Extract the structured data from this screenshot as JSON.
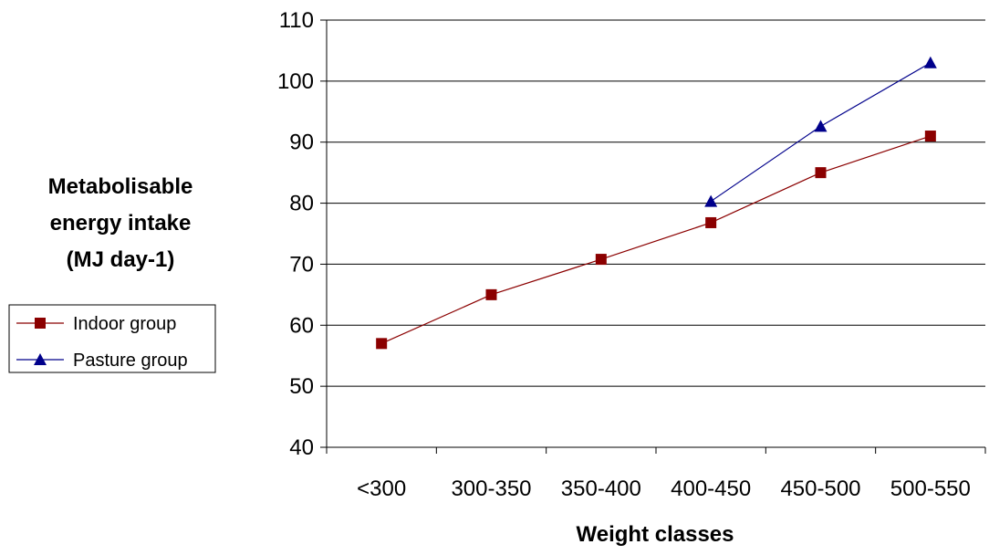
{
  "chart_data": {
    "type": "line",
    "categories": [
      "<300",
      "300-350",
      "350-400",
      "400-450",
      "450-500",
      "500-550"
    ],
    "series": [
      {
        "name": "Indoor group",
        "values": [
          57,
          65,
          70.8,
          76.8,
          85,
          91
        ],
        "color": "#8B0000",
        "marker": "square"
      },
      {
        "name": "Pasture group",
        "values": [
          null,
          null,
          null,
          80.3,
          92.6,
          103
        ],
        "color": "#00008B",
        "marker": "triangle"
      }
    ],
    "title": "",
    "xlabel": "Weight classes",
    "ylabel_lines": [
      "Metabolisable",
      "energy intake",
      "(MJ day-1)"
    ],
    "ylim": [
      40,
      110
    ],
    "yticks": [
      40,
      50,
      60,
      70,
      80,
      90,
      100,
      110
    ],
    "grid": "horizontal",
    "legend_position": "left"
  }
}
